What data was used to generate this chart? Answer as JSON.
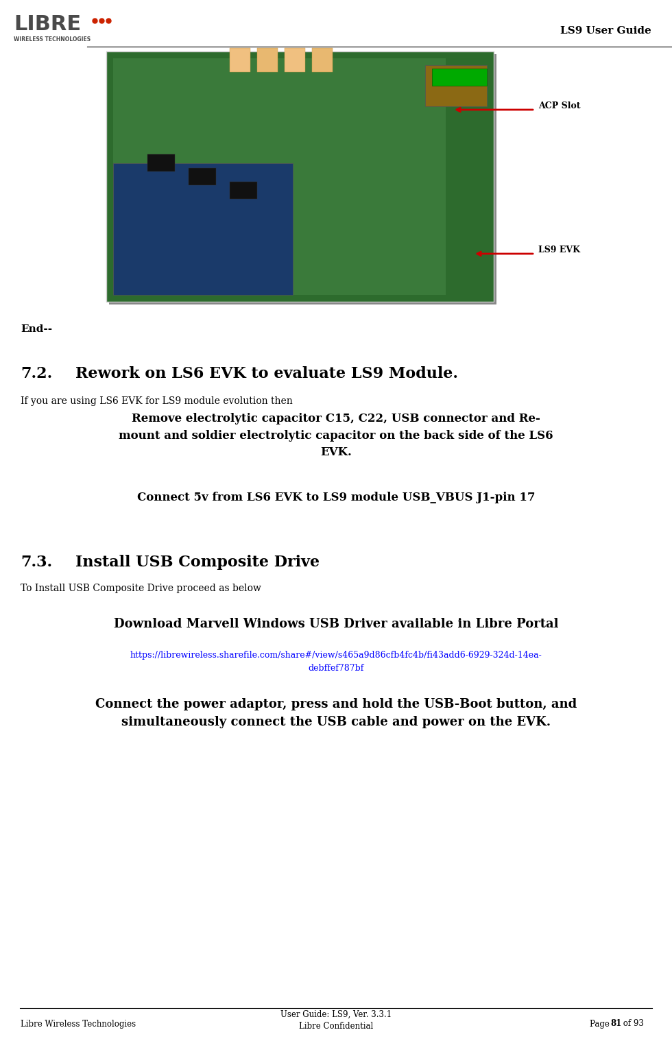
{
  "title_header": "LS9 User Guide",
  "bg_color": "#ffffff",
  "footer_left": "Libre Wireless Technologies",
  "footer_center": "User Guide: LS9, Ver. 3.3.1\nLibre Confidential",
  "footer_right": "Page 81 of 93",
  "end_text": "End--",
  "section_72_number": "7.2.",
  "section_72_title": "Rework on LS6 EVK to evaluate LS9 Module.",
  "section_72_intro": "If you are using LS6 EVK for LS9 module evolution then",
  "section_72_bold1": "Remove electrolytic capacitor C15, C22, USB connector and Re-\nmount and soldier electrolytic capacitor on the back side of the LS6\nEVK.",
  "section_72_bold2": "Connect 5v from LS6 EVK to LS9 module USB_VBUS J1-pin 17",
  "section_73_number": "7.3.",
  "section_73_title": "Install USB Composite Drive",
  "section_73_intro": "To Install USB Composite Drive proceed as below",
  "section_73_bold1": "Download Marvell Windows USB Driver available in Libre Portal",
  "section_73_link": "https://librewireless.sharefile.com/share#/view/s465a9d86cfb4fc4b/fi43add6-6929-324d-14ea-\ndebffef787bf",
  "section_73_bold2": "Connect the power adaptor, press and hold the USB-Boot button, and\nsimultaneously connect the USB cable and power on the EVK.",
  "header_line_color": "#000000",
  "footer_line_color": "#000000",
  "link_color": "#0000ff",
  "bold_color": "#000000",
  "normal_color": "#000000"
}
